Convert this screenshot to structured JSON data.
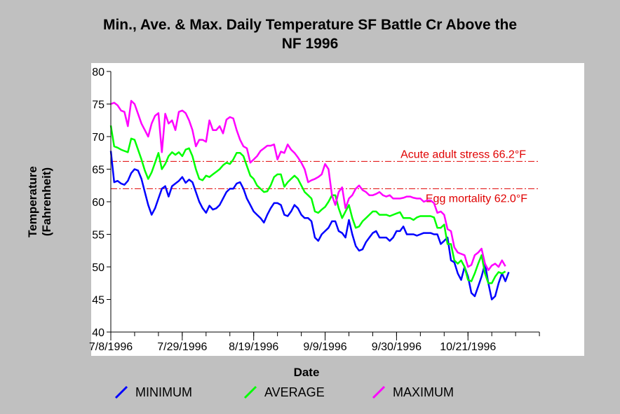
{
  "chart_data": {
    "type": "line",
    "title_line1": "Min., Ave. & Max. Daily Temperature SF Battle Cr Above the",
    "title_line2": "NF 1996",
    "xlabel": "Date",
    "ylabel_line1": "Temperature",
    "ylabel_line2": "(Fahrenheit)",
    "ylim": [
      40,
      80
    ],
    "yticks": [
      40,
      45,
      50,
      55,
      60,
      65,
      70,
      75,
      80
    ],
    "xlim_days": [
      0,
      126
    ],
    "xticks": [
      {
        "day": 0,
        "label": "7/8/1996"
      },
      {
        "day": 21,
        "label": "7/29/1996"
      },
      {
        "day": 42,
        "label": "8/19/1996"
      },
      {
        "day": 63,
        "label": "9/9/1996"
      },
      {
        "day": 84,
        "label": "9/30/1996"
      },
      {
        "day": 105,
        "label": "10/21/1996"
      }
    ],
    "grid": false,
    "reference_lines": [
      {
        "value": 66.2,
        "label": "Acute adult stress 66.2°F",
        "color": "#e00000"
      },
      {
        "value": 62.0,
        "label": "Egg mortality 62.0°F",
        "color": "#e00000"
      }
    ],
    "legend_position": "bottom",
    "series": [
      {
        "name": "MINIMUM",
        "color": "#0000ff",
        "values": [
          67.8,
          63,
          63.2,
          62.8,
          62.6,
          63.2,
          64.4,
          65,
          64.8,
          63.5,
          61.5,
          59.5,
          58,
          59,
          60.5,
          62,
          62.4,
          60.8,
          62.4,
          62.8,
          63.2,
          63.8,
          62.9,
          63.4,
          63,
          61.5,
          60,
          59,
          58.3,
          59.4,
          58.8,
          59,
          59.5,
          60.5,
          61.5,
          62,
          62,
          62.8,
          63,
          62,
          60.5,
          59.5,
          58.5,
          58,
          57.5,
          56.8,
          58,
          59,
          59.8,
          59.8,
          59.5,
          58,
          57.8,
          58.5,
          59.5,
          59,
          58,
          57.5,
          57.5,
          57,
          54.5,
          54,
          55,
          55.5,
          56,
          57,
          57,
          55.5,
          55.2,
          54.5,
          57.2,
          55,
          53.2,
          52.5,
          52.7,
          53.8,
          54.5,
          55.2,
          55.5,
          54.5,
          54.5,
          54.5,
          54,
          54.5,
          55.5,
          55.5,
          56.2,
          55,
          55,
          55,
          54.8,
          55,
          55.2,
          55.2,
          55.2,
          55,
          55,
          53.5,
          54,
          54.5,
          51,
          50.7,
          49,
          48,
          50,
          48.5,
          46,
          45.5,
          47,
          48.5,
          50.5,
          47.5,
          45,
          45.5,
          47.5,
          49,
          47.8,
          49.2
        ]
      },
      {
        "name": "AVERAGE",
        "color": "#00ff00",
        "values": [
          71.7,
          68.5,
          68.3,
          68,
          67.8,
          67.6,
          69.7,
          69.5,
          68,
          66.5,
          64.8,
          63.5,
          64.5,
          66,
          67.5,
          65,
          65.8,
          67,
          67.6,
          67.2,
          67.6,
          67,
          68,
          68.2,
          67,
          65,
          63.5,
          63.3,
          64,
          63.8,
          64.2,
          64.6,
          65,
          65.6,
          66,
          65.8,
          66.5,
          67.5,
          67.5,
          67,
          65.5,
          64,
          63.5,
          62.5,
          62,
          61.5,
          61.6,
          62.5,
          63.8,
          64.2,
          64.2,
          62.3,
          63,
          63.5,
          64,
          63.5,
          62.5,
          61.5,
          61,
          60.5,
          58.5,
          58.3,
          58.8,
          59.2,
          60,
          61,
          61,
          59,
          57.5,
          58.5,
          59.5,
          57.5,
          56,
          56.2,
          57,
          57.5,
          58,
          58.5,
          58.5,
          58,
          58,
          58,
          57.8,
          58,
          58.2,
          58.4,
          57.5,
          57.5,
          57.5,
          57.2,
          57.6,
          57.8,
          57.8,
          57.8,
          57.8,
          57.6,
          56,
          56,
          56.5,
          53.5,
          53.5,
          51,
          50.5,
          51,
          50,
          48,
          47.8,
          49,
          50.5,
          51.8,
          49,
          47.5,
          47.5,
          48.5,
          49.2,
          49,
          49.3
        ]
      },
      {
        "name": "MAXIMUM",
        "color": "#ff00ff",
        "values": [
          75,
          75.2,
          74.8,
          74,
          73.8,
          71.6,
          75.5,
          75,
          73.5,
          72,
          71,
          70,
          72,
          73.2,
          73.6,
          67.6,
          73.5,
          72,
          72.5,
          71,
          73.8,
          74,
          73.6,
          72.5,
          71,
          68.5,
          69.5,
          69.5,
          69.2,
          72.5,
          71,
          71,
          71.6,
          70.5,
          72.6,
          73,
          72.8,
          71,
          69.5,
          68.5,
          68.2,
          66,
          66.5,
          67,
          67.8,
          68.2,
          68.6,
          68.6,
          68.8,
          66.5,
          67.7,
          67.5,
          68.8,
          68,
          67.5,
          66.8,
          66,
          65,
          63,
          63.3,
          63.5,
          63.8,
          64.2,
          65.8,
          65,
          61,
          59.5,
          61.5,
          62.2,
          59,
          60.5,
          61,
          62,
          62.5,
          61.8,
          61.5,
          61,
          61,
          61.2,
          61.5,
          61,
          60.8,
          61,
          60.5,
          60.5,
          60.5,
          60.6,
          60.8,
          60.8,
          60.6,
          60.5,
          60.5,
          60,
          60.2,
          60.2,
          59.8,
          58.3,
          58.5,
          58,
          55.8,
          55.5,
          53,
          52.2,
          52,
          51.8,
          50,
          50.3,
          51.8,
          52.2,
          52.8,
          50.5,
          49.5,
          50.2,
          50.5,
          50,
          51,
          50.1
        ]
      }
    ]
  }
}
